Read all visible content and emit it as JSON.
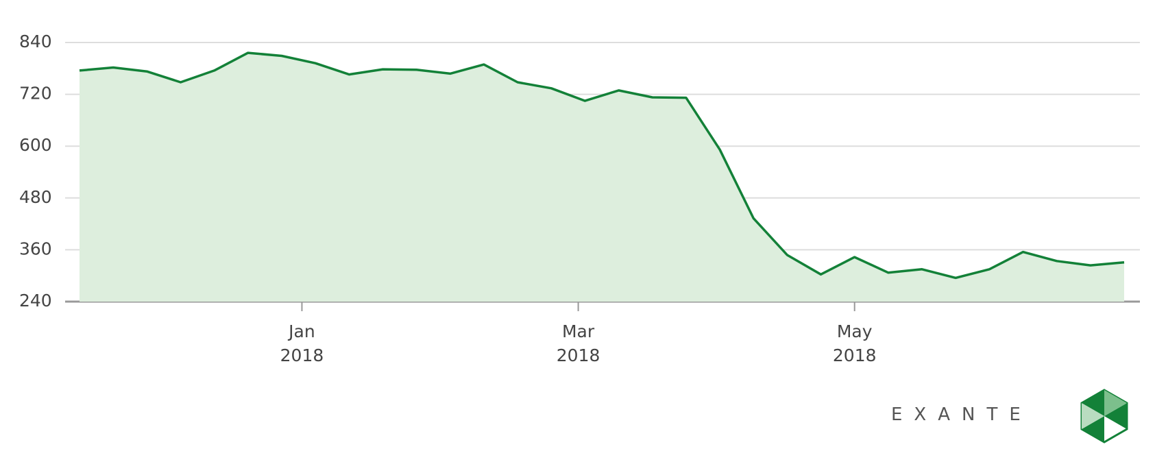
{
  "chart_data": {
    "type": "area",
    "categories": [
      null,
      null,
      null,
      null,
      null,
      null,
      null,
      null,
      null,
      null,
      null,
      null,
      null,
      null,
      null,
      null,
      null,
      null,
      null,
      null,
      null,
      null,
      null,
      null,
      null,
      null,
      null,
      null,
      null,
      null,
      null,
      null
    ],
    "series": [
      {
        "color": "#138138",
        "fill": "#ddeedd",
        "values": [
          775,
          782,
          773,
          748,
          775,
          816,
          809,
          792,
          766,
          778,
          777,
          768,
          789,
          748,
          734,
          705,
          729,
          713,
          712,
          592,
          433,
          348,
          303,
          343,
          307,
          315,
          295,
          315,
          355,
          334,
          324,
          331
        ]
      }
    ],
    "xlim": [
      0,
      31
    ],
    "xticks": [
      {
        "value": 6.6,
        "label": "Jan\n2018"
      },
      {
        "value": 14.8,
        "label": "Mar\n2018"
      },
      {
        "value": 23.0,
        "label": "May\n2018"
      }
    ],
    "ylim": [
      240,
      840
    ],
    "yticks": [
      240,
      360,
      480,
      600,
      720,
      840
    ],
    "grid": true,
    "brand": "EXANTE"
  }
}
